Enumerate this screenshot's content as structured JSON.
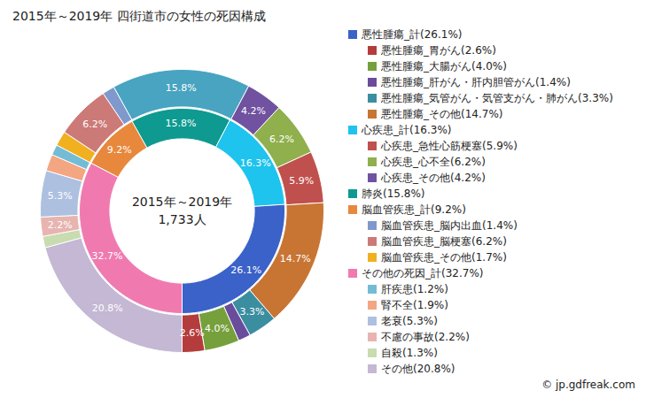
{
  "chart_data": {
    "type": "donut",
    "title": "2015年～2019年 四街道市の女性の死因構成",
    "center_text": [
      "2015年～2019年",
      "1,733人"
    ],
    "data_labels": true,
    "caption": "© jp.gdfreak.com",
    "inner_ring": [
      {
        "value": 26.1,
        "value_label": "26.1%",
        "color": "#3a62c8"
      },
      {
        "value": 16.3,
        "value_label": "16.3%",
        "color": "#1ec3ee"
      },
      {
        "value": 15.8,
        "value_label": "15.8%",
        "color": "#0e9a90"
      },
      {
        "value": 9.2,
        "value_label": "9.2%",
        "color": "#e8883c"
      },
      {
        "value": 32.7,
        "value_label": "32.7%",
        "color": "#f07ab0"
      }
    ],
    "outer_ring": [
      {
        "value": 2.6,
        "value_label": "2.6%",
        "color": "#b43c3c"
      },
      {
        "value": 4.0,
        "value_label": "4.0%",
        "color": "#76a03c"
      },
      {
        "value": 1.4,
        "value_label": null,
        "color": "#6a4c9c"
      },
      {
        "value": 3.3,
        "value_label": "3.3%",
        "color": "#3b8ea0"
      },
      {
        "value": 14.7,
        "value_label": "14.7%",
        "color": "#c87533"
      },
      {
        "value": 5.9,
        "value_label": "5.9%",
        "color": "#c0504d"
      },
      {
        "value": 6.2,
        "value_label": "6.2%",
        "color": "#8fb04c"
      },
      {
        "value": 4.2,
        "value_label": "4.2%",
        "color": "#7052a0"
      },
      {
        "value": 15.8,
        "value_label": "15.8%",
        "color": "#48a4c0"
      },
      {
        "value": 1.4,
        "value_label": null,
        "color": "#7f99cc"
      },
      {
        "value": 6.2,
        "value_label": "6.2%",
        "color": "#cc7a78"
      },
      {
        "value": 1.7,
        "value_label": null,
        "color": "#f0b020"
      },
      {
        "value": 1.2,
        "value_label": null,
        "color": "#74bcd6"
      },
      {
        "value": 1.9,
        "value_label": null,
        "color": "#f4a582"
      },
      {
        "value": 5.3,
        "value_label": "5.3%",
        "color": "#aec0e0"
      },
      {
        "value": 2.2,
        "value_label": "2.2%",
        "color": "#e8b4b0"
      },
      {
        "value": 1.3,
        "value_label": null,
        "color": "#c8dcb0"
      },
      {
        "value": 20.8,
        "value_label": "20.8%",
        "color": "#c4b8d4"
      }
    ],
    "legend_groups": [
      {
        "label": "悪性腫瘍_計(26.1%)",
        "color": "#3a62c8",
        "items": [
          {
            "label": "悪性腫瘍_胃がん(2.6%)",
            "color": "#b43c3c"
          },
          {
            "label": "悪性腫瘍_大腸がん(4.0%)",
            "color": "#76a03c"
          },
          {
            "label": "悪性腫瘍_肝がん・肝内胆管がん(1.4%)",
            "color": "#6a4c9c"
          },
          {
            "label": "悪性腫瘍_気管がん・気管支がん・肺がん(3.3%)",
            "color": "#3b8ea0"
          },
          {
            "label": "悪性腫瘍_その他(14.7%)",
            "color": "#c87533"
          }
        ]
      },
      {
        "label": "心疾患_計(16.3%)",
        "color": "#1ec3ee",
        "items": [
          {
            "label": "心疾患_急性心筋梗塞(5.9%)",
            "color": "#c0504d"
          },
          {
            "label": "心疾患_心不全(6.2%)",
            "color": "#8fb04c"
          },
          {
            "label": "心疾患_その他(4.2%)",
            "color": "#7052a0"
          }
        ]
      },
      {
        "label": "肺炎(15.8%)",
        "color": "#0e9a90",
        "items": []
      },
      {
        "label": "脳血管疾患_計(9.2%)",
        "color": "#e8883c",
        "items": [
          {
            "label": "脳血管疾患_脳内出血(1.4%)",
            "color": "#7f99cc"
          },
          {
            "label": "脳血管疾患_脳梗塞(6.2%)",
            "color": "#cc7a78"
          },
          {
            "label": "脳血管疾患_その他(1.7%)",
            "color": "#f0b020"
          }
        ]
      },
      {
        "label": "その他の死因_計(32.7%)",
        "color": "#f07ab0",
        "items": [
          {
            "label": "肝疾患(1.2%)",
            "color": "#74bcd6"
          },
          {
            "label": "腎不全(1.9%)",
            "color": "#f4a582"
          },
          {
            "label": "老衰(5.3%)",
            "color": "#aec0e0"
          },
          {
            "label": "不慮の事故(2.2%)",
            "color": "#e8b4b0"
          },
          {
            "label": "自殺(1.3%)",
            "color": "#c8dcb0"
          },
          {
            "label": "その他(20.8%)",
            "color": "#c4b8d4"
          }
        ]
      }
    ]
  }
}
